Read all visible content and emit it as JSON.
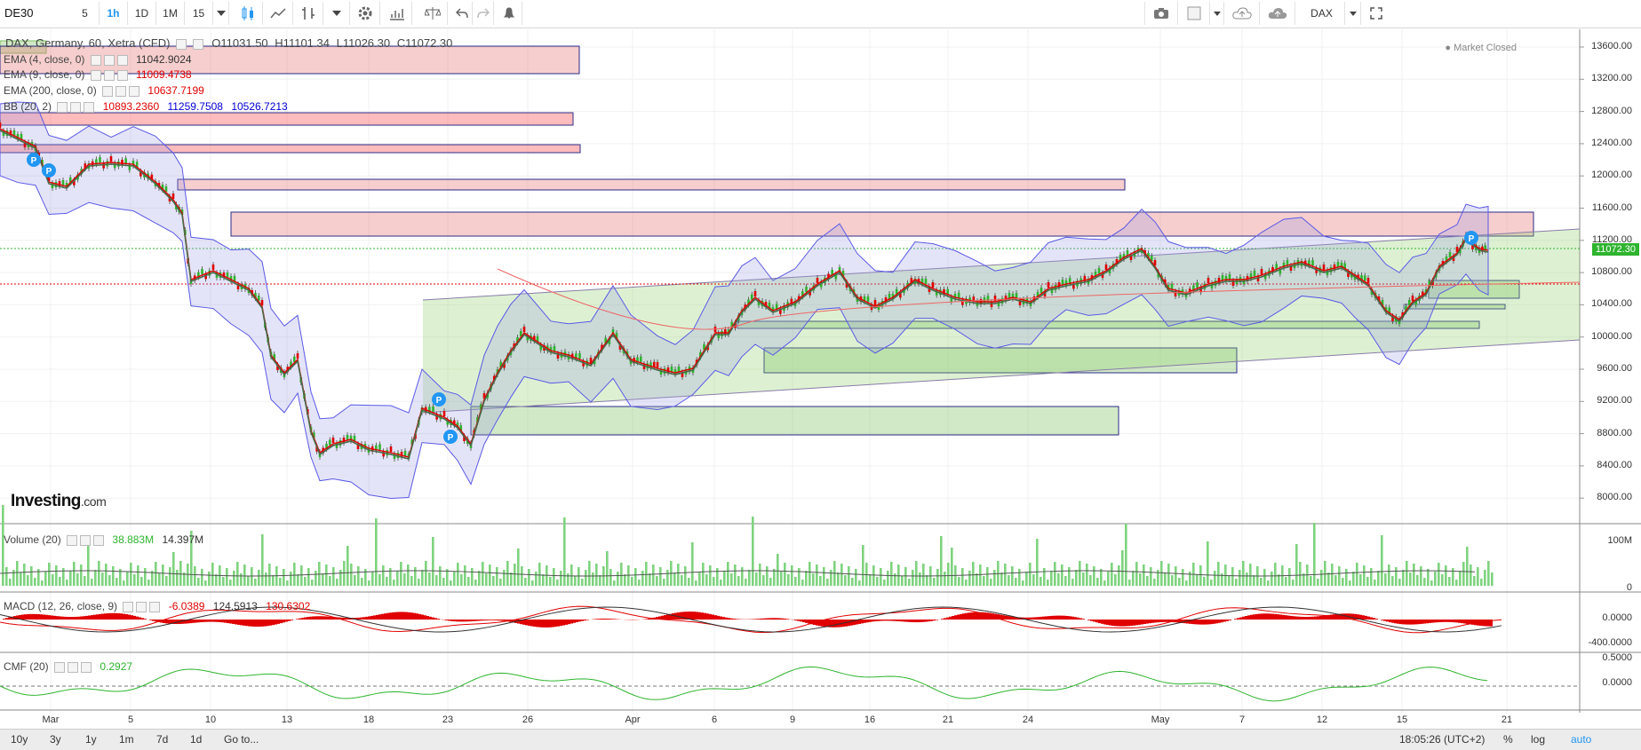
{
  "toolbar": {
    "symbol": "DE30",
    "intervals": [
      "5",
      "1h",
      "1D",
      "1M",
      "15"
    ],
    "active_interval": "1h",
    "right_label": "DAX"
  },
  "chart": {
    "title": "DAX, Germany, 60, Xetra (CFD)",
    "ohlc": {
      "o": "O11031.50",
      "h": "H11101.34",
      "l": "L11026.30",
      "c": "C11072.30"
    },
    "market_status": "Market Closed",
    "last_price": "11072.30",
    "indicators": [
      {
        "name": "EMA (4, close, 0)",
        "values": [
          "11042.9024"
        ],
        "colors": [
          "#333333"
        ]
      },
      {
        "name": "EMA (9, close, 0)",
        "values": [
          "11009.4738"
        ],
        "colors": [
          "#e00000"
        ]
      },
      {
        "name": "EMA (200, close, 0)",
        "values": [
          "10637.7199"
        ],
        "colors": [
          "#e00000"
        ]
      },
      {
        "name": "BB (20, 2)",
        "values": [
          "10893.2360",
          "11259.7508",
          "10526.7213"
        ],
        "colors": [
          "#e00000",
          "#0000d0",
          "#0000d0"
        ]
      }
    ],
    "price_axis": [
      "13600.00",
      "13200.00",
      "12800.00",
      "12400.00",
      "12000.00",
      "11600.00",
      "11200.00",
      "10800.00",
      "10400.00",
      "10000.00",
      "9600.00",
      "9200.00",
      "8800.00",
      "8400.00",
      "8000.00"
    ],
    "time_axis": [
      "Mar",
      "5",
      "10",
      "13",
      "18",
      "23",
      "26",
      "Apr",
      "6",
      "9",
      "16",
      "21",
      "24",
      "May",
      "7",
      "12",
      "15",
      "21"
    ],
    "logo": {
      "brand": "Investing",
      "suffix": ".com"
    }
  },
  "volume_panel": {
    "name": "Volume (20)",
    "values": [
      "38.883M",
      "14.397M"
    ],
    "axis": [
      "100M",
      "0"
    ]
  },
  "macd_panel": {
    "name": "MACD (12, 26, close, 9)",
    "values": [
      "-6.0389",
      "124.5913",
      "130.6302"
    ],
    "axis": [
      "0.0000",
      "-400.0000"
    ]
  },
  "cmf_panel": {
    "name": "CMF (20)",
    "values": [
      "0.2927"
    ],
    "axis": [
      "0.5000",
      "0.0000"
    ]
  },
  "bottom_bar": {
    "ranges": [
      "10y",
      "3y",
      "1y",
      "1m",
      "7d",
      "1d"
    ],
    "goto": "Go to...",
    "time": "18:05:26 (UTC+2)",
    "options": [
      "%",
      "log",
      "auto"
    ]
  },
  "colors": {
    "accent": "#2196f3",
    "up": "#2eb42e",
    "down": "#e00000",
    "bb": "#5a5ae6"
  }
}
